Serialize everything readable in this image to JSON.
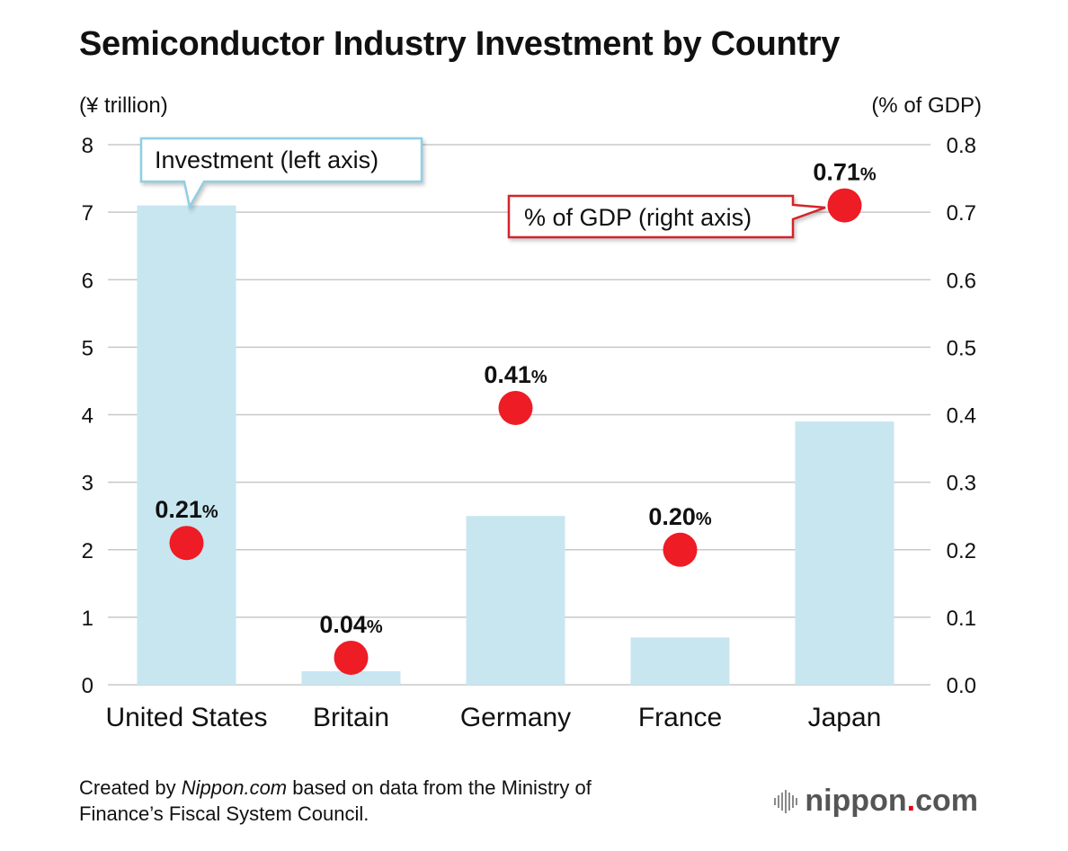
{
  "title": "Semiconductor Industry Investment by Country",
  "axis_unit_left": "(¥ trillion)",
  "axis_unit_right": "(% of GDP)",
  "callouts": {
    "investment": "Investment (left axis)",
    "gdp": "% of GDP (right axis)"
  },
  "footer": {
    "prefix": "Created by ",
    "source": "Nippon.com",
    "suffix": " based on data from the Ministry of\nFinance’s Fiscal System Council."
  },
  "logo": {
    "name": "nippon",
    "dot": ".",
    "tld": "com"
  },
  "colors": {
    "bar": "#c7e6f0",
    "dot": "#ee1c25",
    "grid": "#c8c8c8",
    "callout_left_border": "#8fcfe4",
    "callout_right_border": "#d3242b"
  },
  "chart_data": {
    "type": "bar",
    "categories": [
      "United States",
      "Britain",
      "Germany",
      "France",
      "Japan"
    ],
    "series": [
      {
        "name": "Investment (left axis)",
        "axis": "left",
        "type": "bar",
        "values": [
          7.1,
          0.2,
          2.5,
          0.7,
          3.9
        ]
      },
      {
        "name": "% of GDP (right axis)",
        "axis": "right",
        "type": "scatter",
        "values": [
          0.21,
          0.04,
          0.41,
          0.2,
          0.71
        ],
        "labels": [
          {
            "num": "0.21",
            "unit": "%"
          },
          {
            "num": "0.04",
            "unit": "%"
          },
          {
            "num": "0.41",
            "unit": "%"
          },
          {
            "num": "0.20",
            "unit": "%"
          },
          {
            "num": "0.71",
            "unit": "%"
          }
        ]
      }
    ],
    "ylim_left": [
      0,
      8
    ],
    "ylim_right": [
      0,
      0.8
    ],
    "yticks_left": [
      "0",
      "1",
      "2",
      "3",
      "4",
      "5",
      "6",
      "7",
      "8"
    ],
    "yticks_right": [
      "0.0",
      "0.1",
      "0.2",
      "0.3",
      "0.4",
      "0.5",
      "0.6",
      "0.7",
      "0.8"
    ],
    "grid": true
  }
}
